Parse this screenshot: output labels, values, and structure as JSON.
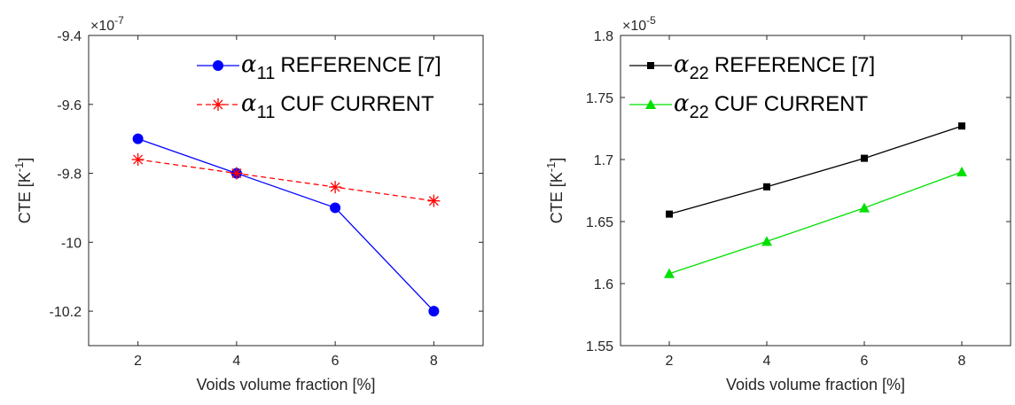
{
  "chart_data": [
    {
      "type": "line",
      "xlabel": "Voids volume fraction [%]",
      "ylabel": "CTE [K",
      "ylabel_sup": "-1",
      "ylabel_close": "]",
      "exponent_base": "×10",
      "exponent_power": "-7",
      "xlim": [
        1,
        9
      ],
      "ylim": [
        -10.3,
        -9.4
      ],
      "xticks": [
        "2",
        "4",
        "6",
        "8"
      ],
      "yticks": [
        "-9.4",
        "-9.6",
        "-9.8",
        "-10",
        "-10.2"
      ],
      "xtick_values": [
        2,
        4,
        6,
        8
      ],
      "ytick_values": [
        -9.4,
        -9.6,
        -9.8,
        -10,
        -10.2
      ],
      "x": [
        2,
        4,
        6,
        8
      ],
      "legend_position": "top-right",
      "series": [
        {
          "name": "α11 REFERENCE [7]",
          "legend_symbol": "α",
          "legend_sub": "11",
          "legend_text": "REFERENCE [7]",
          "values": [
            -9.7,
            -9.8,
            -9.9,
            -10.2
          ],
          "color": "#0000ff",
          "marker": "circle",
          "dash": "solid"
        },
        {
          "name": "α11 CUF CURRENT",
          "legend_symbol": "α",
          "legend_sub": "11",
          "legend_text": "CUF CURRENT",
          "values": [
            -9.76,
            -9.8,
            -9.84,
            -9.88
          ],
          "color": "#ff0000",
          "marker": "asterisk",
          "dash": "dashed"
        }
      ]
    },
    {
      "type": "line",
      "xlabel": "Voids volume fraction [%]",
      "ylabel": "CTE [K",
      "ylabel_sup": "-1",
      "ylabel_close": "]",
      "exponent_base": "×10",
      "exponent_power": "-5",
      "xlim": [
        1,
        9
      ],
      "ylim": [
        1.55,
        1.8
      ],
      "xticks": [
        "2",
        "4",
        "6",
        "8"
      ],
      "yticks": [
        "1.8",
        "1.75",
        "1.7",
        "1.65",
        "1.6",
        "1.55"
      ],
      "xtick_values": [
        2,
        4,
        6,
        8
      ],
      "ytick_values": [
        1.8,
        1.75,
        1.7,
        1.65,
        1.6,
        1.55
      ],
      "x": [
        2,
        4,
        6,
        8
      ],
      "legend_position": "top-left",
      "series": [
        {
          "name": "α22 REFERENCE [7]",
          "legend_symbol": "α",
          "legend_sub": "22",
          "legend_text": "REFERENCE [7]",
          "values": [
            1.656,
            1.678,
            1.701,
            1.727
          ],
          "color": "#000000",
          "marker": "square",
          "dash": "solid"
        },
        {
          "name": "α22 CUF CURRENT",
          "legend_symbol": "α",
          "legend_sub": "22",
          "legend_text": "CUF CURRENT",
          "values": [
            1.608,
            1.634,
            1.661,
            1.69
          ],
          "color": "#00e000",
          "marker": "triangle",
          "dash": "solid"
        }
      ]
    }
  ]
}
